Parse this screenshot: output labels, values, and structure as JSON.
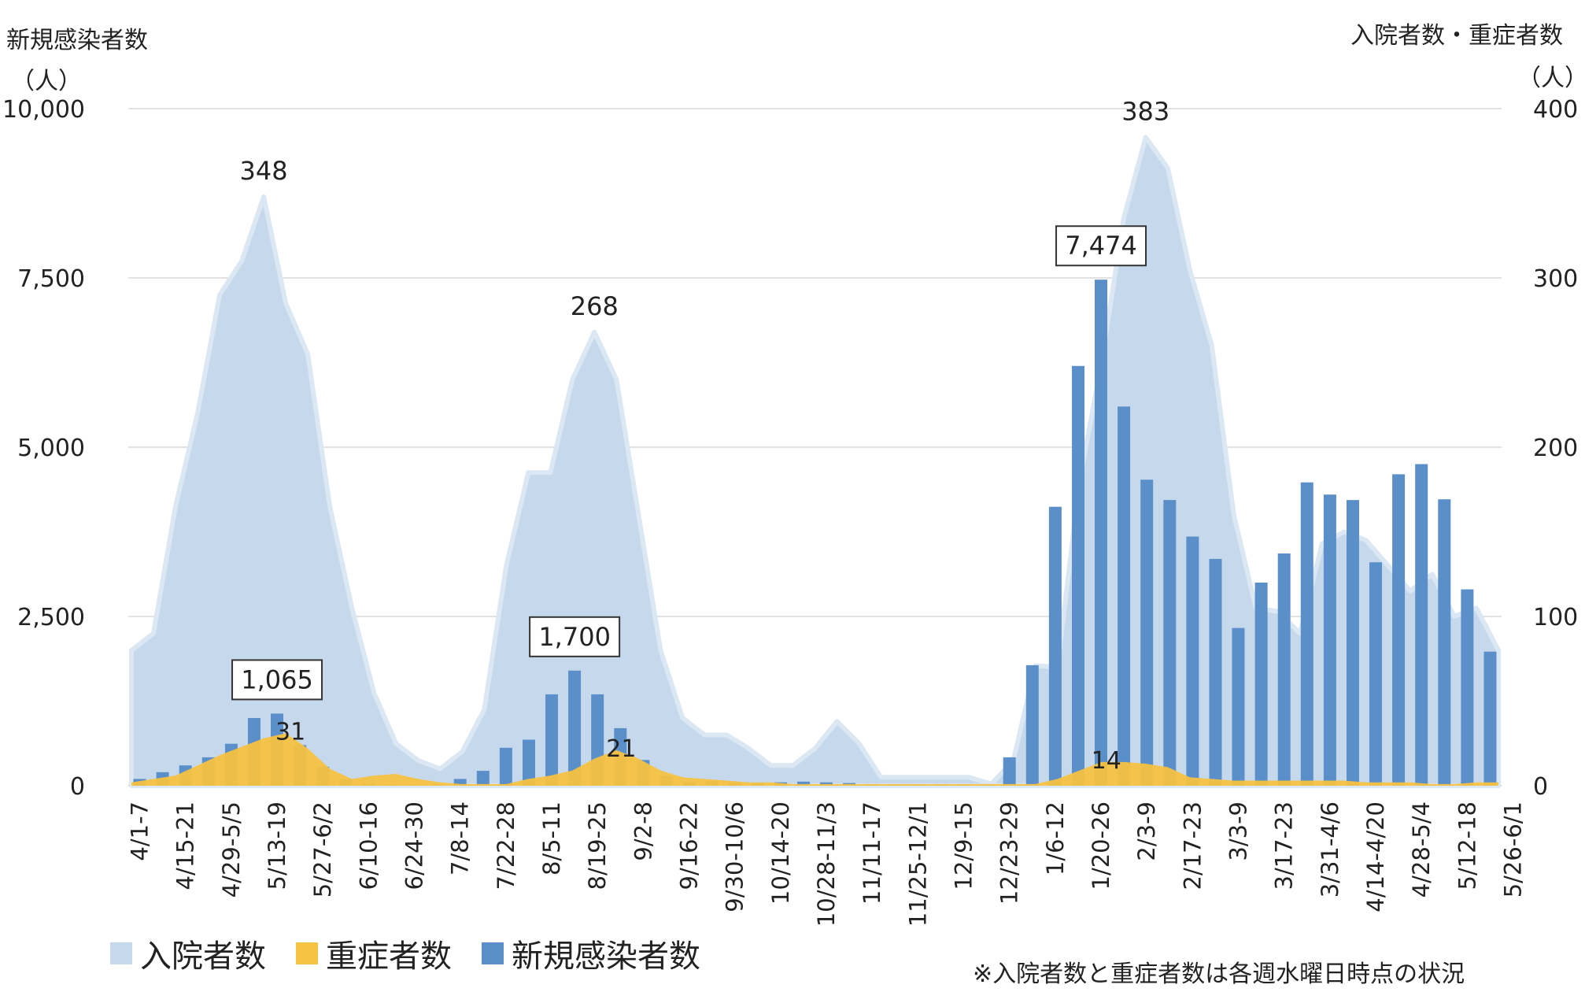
{
  "y_left_title": "新規感染者数",
  "y_left_unit": "（人）",
  "y_right_title": "入院者数・重症者数",
  "y_right_unit": "（人）",
  "note": "※入院者数と重症者数は各週水曜日時点の状況",
  "colors": {
    "hospitalized": "#c6d9ec",
    "hospitalized_edge": "#dbe7f3",
    "severe": "#f5c242",
    "new_cases": "#5b8fc9"
  },
  "legend": [
    {
      "key": "hospitalized",
      "label": "入院者数"
    },
    {
      "key": "severe",
      "label": "重症者数"
    },
    {
      "key": "new_cases",
      "label": "新規感染者数"
    }
  ],
  "chart_data": {
    "type": "bar+area",
    "x_tick_labels": [
      "4/1-7",
      "4/15-21",
      "4/29-5/5",
      "5/13-19",
      "5/27-6/2",
      "6/10-16",
      "6/24-30",
      "7/8-14",
      "7/22-28",
      "8/5-11",
      "8/19-25",
      "9/2-8",
      "9/16-22",
      "9/30-10/6",
      "10/14-20",
      "10/28-11/3",
      "11/11-17",
      "11/25-12/1",
      "12/9-15",
      "12/23-29",
      "1/6-12",
      "1/20-26",
      "2/3-9",
      "2/17-23",
      "3/3-9",
      "3/17-23",
      "3/31-4/6",
      "4/14-4/20",
      "4/28-5/4",
      "5/12-18",
      "5/26-6/1"
    ],
    "left_axis": {
      "min": 0,
      "max": 10000,
      "ticks": [
        0,
        2500,
        5000,
        7500,
        10000
      ],
      "tick_labels": [
        "0",
        "2,500",
        "5,000",
        "7,500",
        "10,000"
      ]
    },
    "right_axis": {
      "min": 0,
      "max": 400,
      "ticks": [
        0,
        100,
        200,
        300,
        400
      ],
      "tick_labels": [
        "0",
        "100",
        "200",
        "300",
        "400"
      ]
    },
    "series": [
      {
        "name": "新規感染者数",
        "axis": "left",
        "kind": "bar",
        "values": [
          100,
          200,
          300,
          420,
          620,
          1000,
          1065,
          600,
          280,
          100,
          30,
          15,
          10,
          15,
          100,
          220,
          560,
          680,
          1350,
          1700,
          1350,
          850,
          380,
          150,
          60,
          70,
          50,
          40,
          50,
          60,
          50,
          40,
          20,
          20,
          20,
          20,
          15,
          10,
          420,
          1780,
          4120,
          6200,
          7474,
          5600,
          4520,
          4220,
          3680,
          3350,
          2330,
          3000,
          3430,
          4480,
          4300,
          4220,
          3300,
          4600,
          4750,
          4230,
          2900,
          1980
        ]
      },
      {
        "name": "入院者数",
        "axis": "right",
        "kind": "area",
        "values": [
          80,
          90,
          165,
          220,
          290,
          310,
          348,
          285,
          255,
          165,
          105,
          55,
          25,
          15,
          10,
          20,
          45,
          130,
          185,
          185,
          240,
          268,
          240,
          160,
          80,
          40,
          30,
          30,
          22,
          12,
          12,
          22,
          38,
          25,
          5,
          5,
          5,
          5,
          5,
          1,
          15,
          71,
          70,
          180,
          250,
          335,
          383,
          365,
          305,
          260,
          160,
          105,
          103,
          90,
          143,
          150,
          145,
          130,
          115,
          125,
          100,
          105,
          80
        ]
      },
      {
        "name": "重症者数",
        "axis": "right",
        "kind": "area",
        "values": [
          2,
          4,
          6,
          12,
          18,
          23,
          28,
          31,
          22,
          10,
          4,
          6,
          7,
          4,
          2,
          1,
          1,
          1,
          4,
          6,
          9,
          16,
          21,
          16,
          9,
          5,
          4,
          3,
          2,
          2,
          1,
          1,
          1,
          1,
          1,
          1,
          1,
          1,
          1,
          1,
          1,
          1,
          4,
          9,
          14,
          14,
          13,
          11,
          5,
          4,
          3,
          3,
          3,
          3,
          3,
          3,
          2,
          2,
          2,
          1,
          1,
          2,
          2
        ]
      }
    ],
    "annotations": [
      {
        "text": "348",
        "series": "入院者数",
        "boxed": false
      },
      {
        "text": "268",
        "series": "入院者数",
        "boxed": false
      },
      {
        "text": "383",
        "series": "入院者数",
        "boxed": false
      },
      {
        "text": "1,065",
        "series": "新規感染者数",
        "boxed": true
      },
      {
        "text": "1,700",
        "series": "新規感染者数",
        "boxed": true
      },
      {
        "text": "7,474",
        "series": "新規感染者数",
        "boxed": true
      },
      {
        "text": "31",
        "series": "重症者数",
        "boxed": false
      },
      {
        "text": "21",
        "series": "重症者数",
        "boxed": false
      },
      {
        "text": "14",
        "series": "重症者数",
        "boxed": false
      }
    ]
  }
}
